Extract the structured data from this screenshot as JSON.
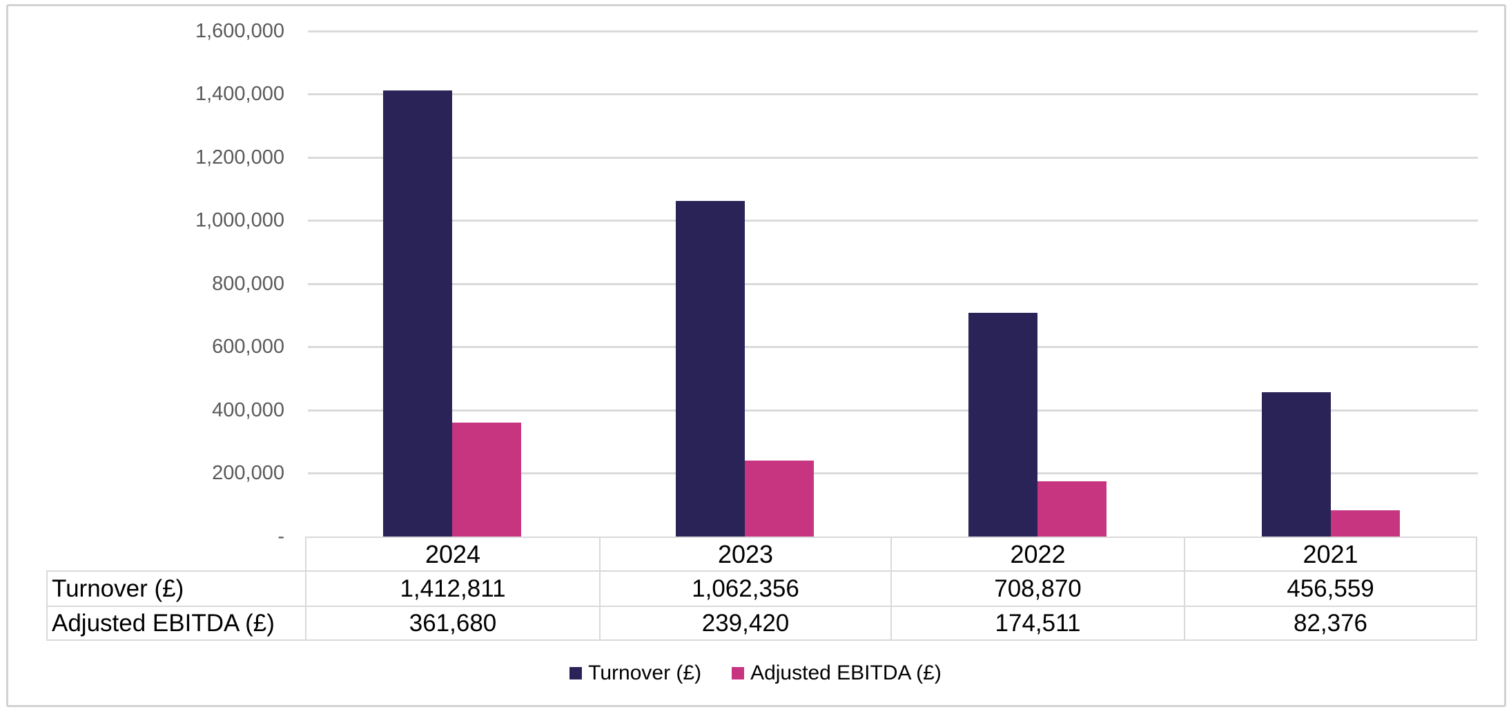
{
  "chart_data": {
    "type": "bar",
    "title": "",
    "xlabel": "",
    "ylabel": "",
    "categories": [
      "2024",
      "2023",
      "2022",
      "2021"
    ],
    "series": [
      {
        "name": "Turnover (£)",
        "color": "#292357",
        "values": [
          1412811,
          1062356,
          708870,
          456559
        ]
      },
      {
        "name": "Adjusted EBITDA (£)",
        "color": "#C73581",
        "values": [
          361680,
          239420,
          174511,
          82376
        ]
      }
    ],
    "ylim": [
      0,
      1600000
    ],
    "ytick_interval": 200000,
    "yticks": [
      {
        "value": 1600000,
        "label": "1,600,000"
      },
      {
        "value": 1400000,
        "label": "1,400,000"
      },
      {
        "value": 1200000,
        "label": "1,200,000"
      },
      {
        "value": 1000000,
        "label": "1,000,000"
      },
      {
        "value": 800000,
        "label": "800,000"
      },
      {
        "value": 600000,
        "label": "600,000"
      },
      {
        "value": 400000,
        "label": "400,000"
      },
      {
        "value": 200000,
        "label": "200,000"
      },
      {
        "value": 0,
        "label": "-"
      }
    ],
    "grid": "horizontal",
    "legend_position": "bottom",
    "axis_label_color": "#595959",
    "gridline_color": "#DADADA"
  },
  "table": {
    "year_headers": [
      "2024",
      "2023",
      "2022",
      "2021"
    ],
    "rows": [
      {
        "label": "Turnover (£)",
        "cells": [
          "1,412,811",
          "1,062,356",
          "708,870",
          "456,559"
        ]
      },
      {
        "label": "Adjusted EBITDA (£)",
        "cells": [
          "361,680",
          "239,420",
          "174,511",
          "82,376"
        ]
      }
    ]
  },
  "legend": {
    "items": [
      {
        "label": "Turnover (£)"
      },
      {
        "label": "Adjusted EBITDA (£)"
      }
    ]
  }
}
